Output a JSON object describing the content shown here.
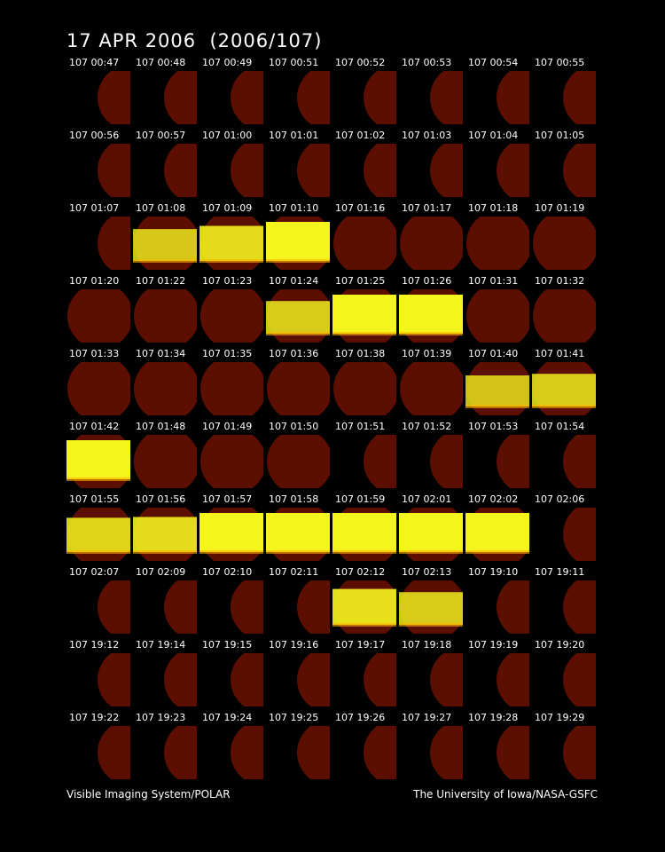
{
  "title": "17 APR 2006  (2006/107)",
  "footer": {
    "left": "Visible Imaging System/POLAR",
    "right": "The University of Iowa/NASA-GSFC"
  },
  "colors": {
    "background": "#000000",
    "disk": "#5c0f00",
    "glow": "#f5f51e",
    "glow_edge": "#ffb400"
  },
  "frames": [
    {
      "label": "107 00:47",
      "view": "half"
    },
    {
      "label": "107 00:48",
      "view": "half"
    },
    {
      "label": "107 00:49",
      "view": "half"
    },
    {
      "label": "107 00:51",
      "view": "half"
    },
    {
      "label": "107 00:52",
      "view": "half"
    },
    {
      "label": "107 00:53",
      "view": "half"
    },
    {
      "label": "107 00:54",
      "view": "half"
    },
    {
      "label": "107 00:55",
      "view": "half"
    },
    {
      "label": "107 00:56",
      "view": "half"
    },
    {
      "label": "107 00:57",
      "view": "half"
    },
    {
      "label": "107 01:00",
      "view": "half"
    },
    {
      "label": "107 01:01",
      "view": "half"
    },
    {
      "label": "107 01:02",
      "view": "half"
    },
    {
      "label": "107 01:03",
      "view": "half"
    },
    {
      "label": "107 01:04",
      "view": "half"
    },
    {
      "label": "107 01:05",
      "view": "half"
    },
    {
      "label": "107 01:07",
      "view": "half"
    },
    {
      "label": "107 01:08",
      "view": "band",
      "glow": 0.55
    },
    {
      "label": "107 01:09",
      "view": "band",
      "glow": 0.75
    },
    {
      "label": "107 01:10",
      "view": "band",
      "glow": 1.0
    },
    {
      "label": "107 01:16",
      "view": "full"
    },
    {
      "label": "107 01:17",
      "view": "full"
    },
    {
      "label": "107 01:18",
      "view": "full"
    },
    {
      "label": "107 01:19",
      "view": "full"
    },
    {
      "label": "107 01:20",
      "view": "full"
    },
    {
      "label": "107 01:22",
      "view": "full"
    },
    {
      "label": "107 01:23",
      "view": "full"
    },
    {
      "label": "107 01:24",
      "view": "band",
      "glow": 0.6
    },
    {
      "label": "107 01:25",
      "view": "band",
      "glow": 1.0
    },
    {
      "label": "107 01:26",
      "view": "band",
      "glow": 1.0
    },
    {
      "label": "107 01:31",
      "view": "full"
    },
    {
      "label": "107 01:32",
      "view": "full"
    },
    {
      "label": "107 01:33",
      "view": "full"
    },
    {
      "label": "107 01:34",
      "view": "full"
    },
    {
      "label": "107 01:35",
      "view": "full"
    },
    {
      "label": "107 01:36",
      "view": "full"
    },
    {
      "label": "107 01:38",
      "view": "full"
    },
    {
      "label": "107 01:39",
      "view": "full"
    },
    {
      "label": "107 01:40",
      "view": "band",
      "glow": 0.5
    },
    {
      "label": "107 01:41",
      "view": "band",
      "glow": 0.6
    },
    {
      "label": "107 01:42",
      "view": "band",
      "glow": 1.0
    },
    {
      "label": "107 01:48",
      "view": "full"
    },
    {
      "label": "107 01:49",
      "view": "full"
    },
    {
      "label": "107 01:50",
      "view": "full"
    },
    {
      "label": "107 01:51",
      "view": "half"
    },
    {
      "label": "107 01:52",
      "view": "half"
    },
    {
      "label": "107 01:53",
      "view": "half"
    },
    {
      "label": "107 01:54",
      "view": "half"
    },
    {
      "label": "107 01:55",
      "view": "band",
      "glow": 0.7
    },
    {
      "label": "107 01:56",
      "view": "band",
      "glow": 0.75
    },
    {
      "label": "107 01:57",
      "view": "band",
      "glow": 1.0
    },
    {
      "label": "107 01:58",
      "view": "band",
      "glow": 1.0
    },
    {
      "label": "107 01:59",
      "view": "band",
      "glow": 1.0
    },
    {
      "label": "107 02:01",
      "view": "band",
      "glow": 1.0
    },
    {
      "label": "107 02:02",
      "view": "band",
      "glow": 1.0
    },
    {
      "label": "107 02:06",
      "view": "half"
    },
    {
      "label": "107 02:07",
      "view": "half"
    },
    {
      "label": "107 02:09",
      "view": "half"
    },
    {
      "label": "107 02:10",
      "view": "half"
    },
    {
      "label": "107 02:11",
      "view": "half"
    },
    {
      "label": "107 02:12",
      "view": "band",
      "glow": 0.8
    },
    {
      "label": "107 02:13",
      "view": "band",
      "glow": 0.6
    },
    {
      "label": "107 19:10",
      "view": "half"
    },
    {
      "label": "107 19:11",
      "view": "half"
    },
    {
      "label": "107 19:12",
      "view": "half"
    },
    {
      "label": "107 19:14",
      "view": "half"
    },
    {
      "label": "107 19:15",
      "view": "half"
    },
    {
      "label": "107 19:16",
      "view": "half"
    },
    {
      "label": "107 19:17",
      "view": "half"
    },
    {
      "label": "107 19:18",
      "view": "half"
    },
    {
      "label": "107 19:19",
      "view": "half"
    },
    {
      "label": "107 19:20",
      "view": "half"
    },
    {
      "label": "107 19:22",
      "view": "half"
    },
    {
      "label": "107 19:23",
      "view": "half"
    },
    {
      "label": "107 19:24",
      "view": "half"
    },
    {
      "label": "107 19:25",
      "view": "half"
    },
    {
      "label": "107 19:26",
      "view": "half"
    },
    {
      "label": "107 19:27",
      "view": "half"
    },
    {
      "label": "107 19:28",
      "view": "half"
    },
    {
      "label": "107 19:29",
      "view": "half"
    }
  ]
}
